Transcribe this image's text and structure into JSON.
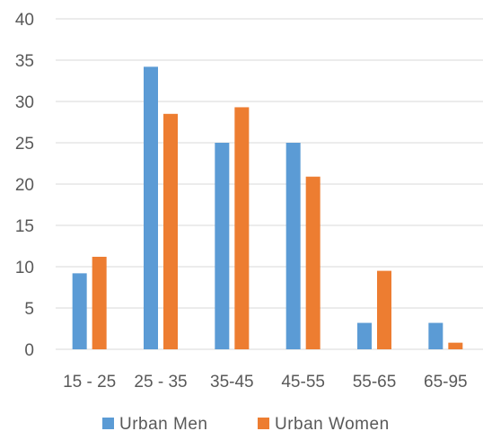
{
  "chart_data": {
    "type": "bar",
    "categories": [
      "15 - 25",
      "25 - 35",
      "35-45",
      "45-55",
      "55-65",
      "65-95"
    ],
    "series": [
      {
        "name": "Urban Men",
        "color": "#5B9BD5",
        "values": [
          9.2,
          34.2,
          25.0,
          25.0,
          3.2,
          3.2
        ]
      },
      {
        "name": "Urban Women",
        "color": "#ED7D31",
        "values": [
          11.2,
          28.5,
          29.3,
          20.9,
          9.5,
          0.8
        ]
      }
    ],
    "ylim": [
      0,
      40
    ],
    "yticks": [
      0,
      5,
      10,
      15,
      20,
      25,
      30,
      35,
      40
    ],
    "grid": true,
    "gridline_color": "#d9d9d9",
    "legend_position": "bottom",
    "title": "",
    "xlabel": "",
    "ylabel": ""
  }
}
